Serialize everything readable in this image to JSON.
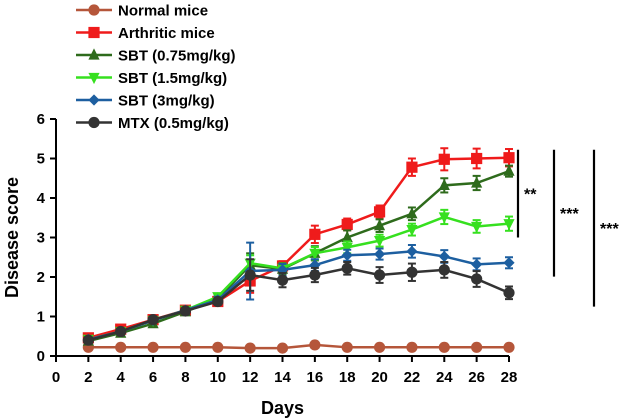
{
  "chart_data": {
    "type": "line",
    "title": "",
    "xlabel": "Days",
    "ylabel": "Disease score",
    "xlim": [
      0,
      28
    ],
    "ylim": [
      0,
      6
    ],
    "x_ticks": [
      0,
      2,
      4,
      6,
      8,
      10,
      12,
      14,
      16,
      18,
      20,
      22,
      24,
      26,
      28
    ],
    "y_ticks": [
      0,
      1,
      2,
      3,
      4,
      5,
      6
    ],
    "x": [
      2,
      4,
      6,
      8,
      10,
      12,
      14,
      16,
      18,
      20,
      22,
      24,
      26,
      28
    ],
    "legend_position": "top-left",
    "series": [
      {
        "name": "Normal mice",
        "color": "#b5563a",
        "marker": "circle",
        "values": [
          0.22,
          0.22,
          0.22,
          0.22,
          0.22,
          0.2,
          0.2,
          0.28,
          0.22,
          0.22,
          0.22,
          0.22,
          0.22,
          0.22
        ],
        "errors": [
          0.02,
          0.02,
          0.02,
          0.02,
          0.02,
          0.02,
          0.02,
          0.03,
          0.02,
          0.02,
          0.02,
          0.02,
          0.02,
          0.02
        ]
      },
      {
        "name": "Arthritic mice",
        "color": "#ef1b1b",
        "marker": "square",
        "values": [
          0.46,
          0.68,
          0.92,
          1.16,
          1.38,
          1.9,
          2.28,
          3.08,
          3.33,
          3.65,
          4.78,
          4.98,
          5.0,
          5.02
        ],
        "errors": [
          0.05,
          0.06,
          0.06,
          0.06,
          0.08,
          0.3,
          0.12,
          0.22,
          0.15,
          0.16,
          0.22,
          0.28,
          0.25,
          0.22
        ]
      },
      {
        "name": "SBT (0.75mg/kg)",
        "color": "#2e6b1c",
        "marker": "triangle-up",
        "values": [
          0.38,
          0.58,
          0.82,
          1.12,
          1.45,
          2.3,
          2.2,
          2.6,
          3.0,
          3.3,
          3.6,
          4.32,
          4.38,
          4.68
        ],
        "errors": [
          0.04,
          0.05,
          0.05,
          0.06,
          0.08,
          0.3,
          0.15,
          0.18,
          0.18,
          0.16,
          0.16,
          0.18,
          0.18,
          0.14
        ]
      },
      {
        "name": "SBT (1.5mg/kg)",
        "color": "#36e01f",
        "marker": "triangle-down",
        "values": [
          0.42,
          0.62,
          0.9,
          1.16,
          1.5,
          2.35,
          2.22,
          2.6,
          2.75,
          2.92,
          3.2,
          3.52,
          3.28,
          3.35
        ],
        "errors": [
          0.04,
          0.05,
          0.05,
          0.06,
          0.08,
          0.2,
          0.12,
          0.16,
          0.15,
          0.15,
          0.15,
          0.18,
          0.16,
          0.18
        ]
      },
      {
        "name": "SBT (3mg/kg)",
        "color": "#1d5fa0",
        "marker": "diamond",
        "values": [
          0.42,
          0.62,
          0.9,
          1.16,
          1.42,
          2.15,
          2.18,
          2.3,
          2.55,
          2.58,
          2.65,
          2.52,
          2.32,
          2.36
        ],
        "errors": [
          0.04,
          0.05,
          0.05,
          0.06,
          0.08,
          0.72,
          0.15,
          0.15,
          0.14,
          0.14,
          0.16,
          0.16,
          0.15,
          0.14
        ]
      },
      {
        "name": "MTX (0.5mg/kg)",
        "color": "#333333",
        "marker": "circle",
        "values": [
          0.4,
          0.62,
          0.92,
          1.14,
          1.38,
          2.05,
          1.92,
          2.05,
          2.22,
          2.05,
          2.12,
          2.18,
          1.95,
          1.6
        ],
        "errors": [
          0.04,
          0.05,
          0.05,
          0.06,
          0.08,
          0.4,
          0.18,
          0.18,
          0.16,
          0.2,
          0.22,
          0.2,
          0.2,
          0.16
        ]
      }
    ],
    "annotations": [
      {
        "text": "**",
        "span": "Arthritic vs SBT (3mg/kg)"
      },
      {
        "text": "***",
        "span": "Arthritic vs SBT (1.5mg/kg)"
      },
      {
        "text": "***",
        "span": "Arthritic vs MTX (0.5mg/kg)"
      }
    ]
  }
}
